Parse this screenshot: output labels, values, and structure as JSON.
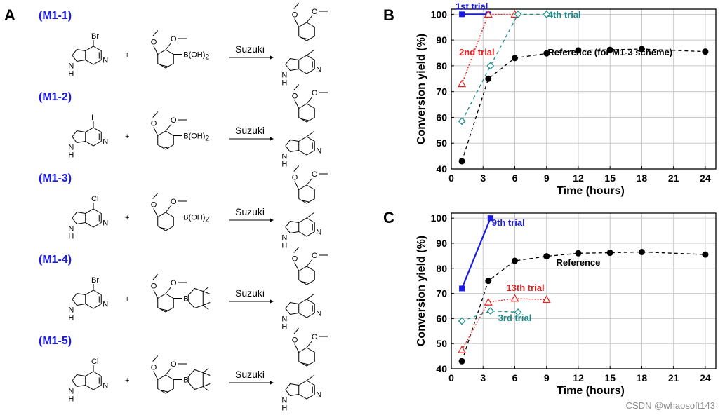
{
  "panel_letters": {
    "a": "A",
    "b": "B",
    "c": "C"
  },
  "reactions": [
    {
      "id": "M1-1",
      "halogen": "Br",
      "boron": "B(OH)",
      "boron_sub": "2",
      "boron_type": "acid"
    },
    {
      "id": "M1-2",
      "halogen": "I",
      "boron": "B(OH)",
      "boron_sub": "2",
      "boron_type": "acid"
    },
    {
      "id": "M1-3",
      "halogen": "Cl",
      "boron": "B(OH)",
      "boron_sub": "2",
      "boron_type": "acid"
    },
    {
      "id": "M1-4",
      "halogen": "Br",
      "boron": "B",
      "boron_sub": "",
      "boron_type": "pinacol"
    },
    {
      "id": "M1-5",
      "halogen": "Cl",
      "boron": "B",
      "boron_sub": "",
      "boron_type": "pinacol"
    }
  ],
  "reaction_text": {
    "reagent": "Suzuki",
    "plus": "+",
    "o1": "O",
    "o2": "O",
    "nh": "N",
    "h": "H",
    "n": "N"
  },
  "chart_data": [
    {
      "panel": "B",
      "type": "line",
      "xlabel": "Time (hours)",
      "ylabel": "Conversion yield (%)",
      "xlim": [
        0,
        25
      ],
      "ylim": [
        40,
        102
      ],
      "xticks": [
        0,
        3,
        6,
        9,
        12,
        15,
        18,
        21,
        24
      ],
      "yticks": [
        40,
        50,
        60,
        70,
        80,
        90,
        100
      ],
      "grid": true,
      "series": [
        {
          "name": "Reference (for M1-3 scheme)",
          "color": "#000000",
          "marker": "circle",
          "line": "dashed",
          "x": [
            1,
            3.5,
            6,
            9,
            12,
            15,
            18,
            24
          ],
          "y": [
            43,
            75,
            83,
            84.8,
            86,
            86.2,
            86.5,
            85.5
          ]
        },
        {
          "name": "1st trial",
          "color": "#1a1ae6",
          "marker": "square",
          "line": "solid",
          "x": [
            1,
            3.5
          ],
          "y": [
            100,
            100
          ]
        },
        {
          "name": "2nd trial",
          "color": "#e62020",
          "marker": "triangle",
          "line": "dotted",
          "x": [
            1,
            3.5,
            6
          ],
          "y": [
            73,
            100,
            100
          ]
        },
        {
          "name": "4th trial",
          "color": "#1a8a8a",
          "marker": "diamond",
          "line": "dashed",
          "x": [
            1,
            3.7,
            6.3,
            9
          ],
          "y": [
            58.5,
            80,
            100,
            100
          ]
        }
      ],
      "annotations": [
        "1st trial",
        "2nd trial",
        "4th trial",
        "Reference (for M1-3 scheme)"
      ]
    },
    {
      "panel": "C",
      "type": "line",
      "xlabel": "Time (hours)",
      "ylabel": "Conversion yield (%)",
      "xlim": [
        0,
        25
      ],
      "ylim": [
        40,
        102
      ],
      "xticks": [
        0,
        3,
        6,
        9,
        12,
        15,
        18,
        21,
        24
      ],
      "yticks": [
        40,
        50,
        60,
        70,
        80,
        90,
        100
      ],
      "grid": true,
      "series": [
        {
          "name": "Reference",
          "color": "#000000",
          "marker": "circle",
          "line": "dashed",
          "x": [
            1,
            3.5,
            6,
            9,
            12,
            15,
            18,
            24
          ],
          "y": [
            43,
            75,
            83,
            84.8,
            86,
            86.2,
            86.5,
            85.5
          ]
        },
        {
          "name": "9th trial",
          "color": "#1a1ae6",
          "marker": "square",
          "line": "solid",
          "x": [
            1,
            3.7
          ],
          "y": [
            72,
            100
          ]
        },
        {
          "name": "13th trial",
          "color": "#e62020",
          "marker": "triangle",
          "line": "dotted",
          "x": [
            1,
            3.5,
            6,
            9
          ],
          "y": [
            47.5,
            66.5,
            68,
            67.5
          ]
        },
        {
          "name": "3rd trial",
          "color": "#1a8a8a",
          "marker": "diamond",
          "line": "dashed",
          "x": [
            1,
            3.7,
            6.3
          ],
          "y": [
            59,
            63,
            62.5
          ]
        }
      ],
      "annotations": [
        "9th trial",
        "13th trial",
        "3rd trial",
        "Reference"
      ]
    }
  ],
  "watermark": "CSDN @whaosoft143"
}
